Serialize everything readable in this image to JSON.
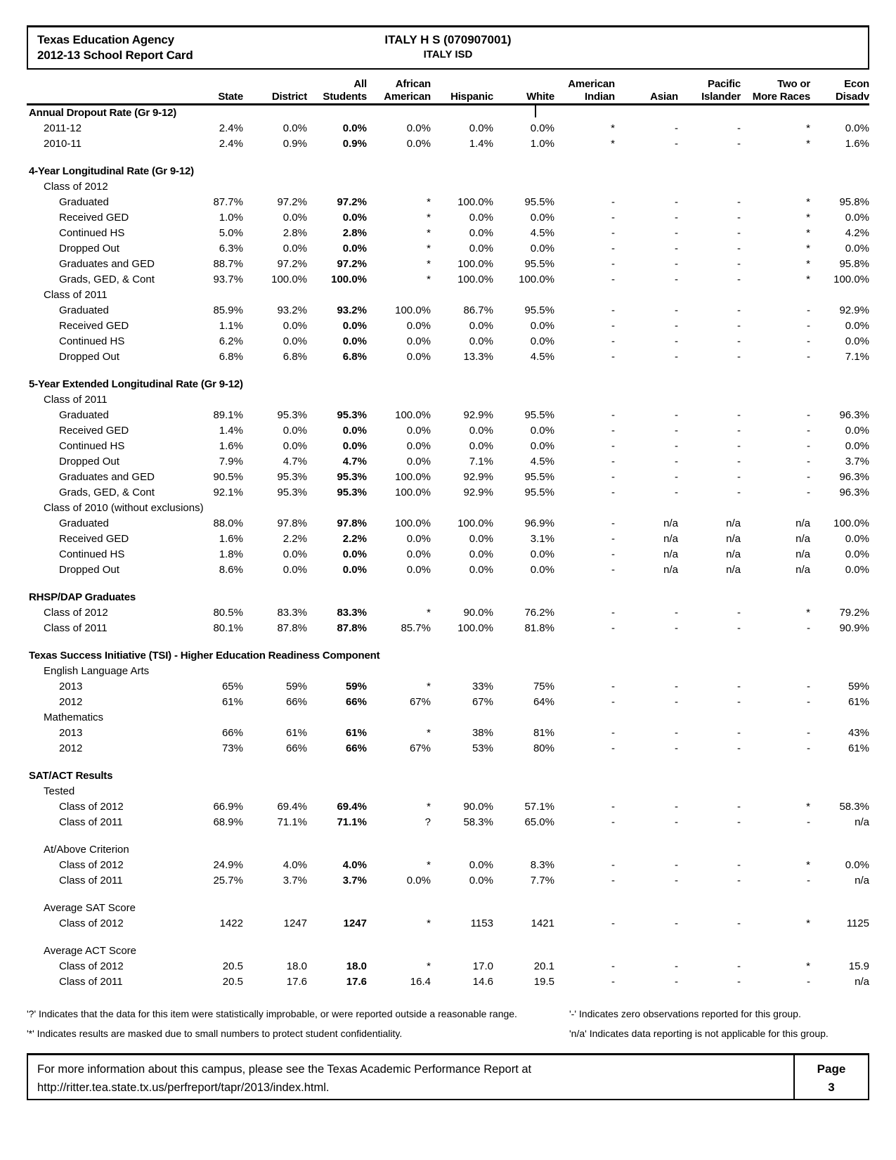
{
  "header": {
    "agency": "Texas Education Agency",
    "report": "2012-13 School Report Card",
    "campus": "ITALY H S (070907001)",
    "district": "ITALY ISD"
  },
  "table": {
    "columns": [
      {
        "l1": "",
        "l2": "State"
      },
      {
        "l1": "",
        "l2": "District"
      },
      {
        "l1": "All",
        "l2": "Students"
      },
      {
        "l1": "African",
        "l2": "American"
      },
      {
        "l1": "",
        "l2": "Hispanic"
      },
      {
        "l1": "",
        "l2": "White"
      },
      {
        "l1": "American",
        "l2": "Indian"
      },
      {
        "l1": "",
        "l2": "Asian"
      },
      {
        "l1": "Pacific",
        "l2": "Islander"
      },
      {
        "l1": "Two or",
        "l2": "More Races"
      },
      {
        "l1": "Econ",
        "l2": "Disadv"
      }
    ],
    "rows": [
      {
        "t": "section",
        "label": "Annual Dropout Rate (Gr 9-12)"
      },
      {
        "t": "data",
        "indent": 1,
        "label": "2011-12",
        "v": [
          "2.4%",
          "0.0%",
          "0.0%",
          "0.0%",
          "0.0%",
          "0.0%",
          "*",
          "-",
          "-",
          "*",
          "0.0%"
        ]
      },
      {
        "t": "data",
        "indent": 1,
        "label": "2010-11",
        "v": [
          "2.4%",
          "0.9%",
          "0.9%",
          "0.0%",
          "1.4%",
          "1.0%",
          "*",
          "-",
          "-",
          "*",
          "1.6%"
        ]
      },
      {
        "t": "gap"
      },
      {
        "t": "section",
        "label": "4-Year Longitudinal Rate (Gr 9-12)"
      },
      {
        "t": "sub",
        "label": "Class of 2012"
      },
      {
        "t": "data",
        "indent": 2,
        "label": "Graduated",
        "v": [
          "87.7%",
          "97.2%",
          "97.2%",
          "*",
          "100.0%",
          "95.5%",
          "-",
          "-",
          "-",
          "*",
          "95.8%"
        ]
      },
      {
        "t": "data",
        "indent": 2,
        "label": "Received GED",
        "v": [
          "1.0%",
          "0.0%",
          "0.0%",
          "*",
          "0.0%",
          "0.0%",
          "-",
          "-",
          "-",
          "*",
          "0.0%"
        ]
      },
      {
        "t": "data",
        "indent": 2,
        "label": "Continued HS",
        "v": [
          "5.0%",
          "2.8%",
          "2.8%",
          "*",
          "0.0%",
          "4.5%",
          "-",
          "-",
          "-",
          "*",
          "4.2%"
        ]
      },
      {
        "t": "data",
        "indent": 2,
        "label": "Dropped Out",
        "v": [
          "6.3%",
          "0.0%",
          "0.0%",
          "*",
          "0.0%",
          "0.0%",
          "-",
          "-",
          "-",
          "*",
          "0.0%"
        ]
      },
      {
        "t": "data",
        "indent": 2,
        "label": "Graduates and GED",
        "v": [
          "88.7%",
          "97.2%",
          "97.2%",
          "*",
          "100.0%",
          "95.5%",
          "-",
          "-",
          "-",
          "*",
          "95.8%"
        ]
      },
      {
        "t": "data",
        "indent": 2,
        "label": "Grads, GED, & Cont",
        "v": [
          "93.7%",
          "100.0%",
          "100.0%",
          "*",
          "100.0%",
          "100.0%",
          "-",
          "-",
          "-",
          "*",
          "100.0%"
        ]
      },
      {
        "t": "sub",
        "label": "Class of 2011"
      },
      {
        "t": "data",
        "indent": 2,
        "label": "Graduated",
        "v": [
          "85.9%",
          "93.2%",
          "93.2%",
          "100.0%",
          "86.7%",
          "95.5%",
          "-",
          "-",
          "-",
          "-",
          "92.9%"
        ]
      },
      {
        "t": "data",
        "indent": 2,
        "label": "Received GED",
        "v": [
          "1.1%",
          "0.0%",
          "0.0%",
          "0.0%",
          "0.0%",
          "0.0%",
          "-",
          "-",
          "-",
          "-",
          "0.0%"
        ]
      },
      {
        "t": "data",
        "indent": 2,
        "label": "Continued HS",
        "v": [
          "6.2%",
          "0.0%",
          "0.0%",
          "0.0%",
          "0.0%",
          "0.0%",
          "-",
          "-",
          "-",
          "-",
          "0.0%"
        ]
      },
      {
        "t": "data",
        "indent": 2,
        "label": "Dropped Out",
        "v": [
          "6.8%",
          "6.8%",
          "6.8%",
          "0.0%",
          "13.3%",
          "4.5%",
          "-",
          "-",
          "-",
          "-",
          "7.1%"
        ]
      },
      {
        "t": "gap"
      },
      {
        "t": "section",
        "label": "5-Year Extended Longitudinal Rate (Gr 9-12)"
      },
      {
        "t": "sub",
        "label": "Class of 2011"
      },
      {
        "t": "data",
        "indent": 2,
        "label": "Graduated",
        "v": [
          "89.1%",
          "95.3%",
          "95.3%",
          "100.0%",
          "92.9%",
          "95.5%",
          "-",
          "-",
          "-",
          "-",
          "96.3%"
        ]
      },
      {
        "t": "data",
        "indent": 2,
        "label": "Received GED",
        "v": [
          "1.4%",
          "0.0%",
          "0.0%",
          "0.0%",
          "0.0%",
          "0.0%",
          "-",
          "-",
          "-",
          "-",
          "0.0%"
        ]
      },
      {
        "t": "data",
        "indent": 2,
        "label": "Continued HS",
        "v": [
          "1.6%",
          "0.0%",
          "0.0%",
          "0.0%",
          "0.0%",
          "0.0%",
          "-",
          "-",
          "-",
          "-",
          "0.0%"
        ]
      },
      {
        "t": "data",
        "indent": 2,
        "label": "Dropped Out",
        "v": [
          "7.9%",
          "4.7%",
          "4.7%",
          "0.0%",
          "7.1%",
          "4.5%",
          "-",
          "-",
          "-",
          "-",
          "3.7%"
        ]
      },
      {
        "t": "data",
        "indent": 2,
        "label": "Graduates and GED",
        "v": [
          "90.5%",
          "95.3%",
          "95.3%",
          "100.0%",
          "92.9%",
          "95.5%",
          "-",
          "-",
          "-",
          "-",
          "96.3%"
        ]
      },
      {
        "t": "data",
        "indent": 2,
        "label": "Grads, GED, & Cont",
        "v": [
          "92.1%",
          "95.3%",
          "95.3%",
          "100.0%",
          "92.9%",
          "95.5%",
          "-",
          "-",
          "-",
          "-",
          "96.3%"
        ]
      },
      {
        "t": "sub",
        "label": "Class of 2010 (without exclusions)"
      },
      {
        "t": "data",
        "indent": 2,
        "label": "Graduated",
        "v": [
          "88.0%",
          "97.8%",
          "97.8%",
          "100.0%",
          "100.0%",
          "96.9%",
          "-",
          "n/a",
          "n/a",
          "n/a",
          "100.0%"
        ]
      },
      {
        "t": "data",
        "indent": 2,
        "label": "Received GED",
        "v": [
          "1.6%",
          "2.2%",
          "2.2%",
          "0.0%",
          "0.0%",
          "3.1%",
          "-",
          "n/a",
          "n/a",
          "n/a",
          "0.0%"
        ]
      },
      {
        "t": "data",
        "indent": 2,
        "label": "Continued HS",
        "v": [
          "1.8%",
          "0.0%",
          "0.0%",
          "0.0%",
          "0.0%",
          "0.0%",
          "-",
          "n/a",
          "n/a",
          "n/a",
          "0.0%"
        ]
      },
      {
        "t": "data",
        "indent": 2,
        "label": "Dropped Out",
        "v": [
          "8.6%",
          "0.0%",
          "0.0%",
          "0.0%",
          "0.0%",
          "0.0%",
          "-",
          "n/a",
          "n/a",
          "n/a",
          "0.0%"
        ]
      },
      {
        "t": "gap"
      },
      {
        "t": "section",
        "label": "RHSP/DAP Graduates"
      },
      {
        "t": "data",
        "indent": 1,
        "label": "Class of 2012",
        "v": [
          "80.5%",
          "83.3%",
          "83.3%",
          "*",
          "90.0%",
          "76.2%",
          "-",
          "-",
          "-",
          "*",
          "79.2%"
        ]
      },
      {
        "t": "data",
        "indent": 1,
        "label": "Class of 2011",
        "v": [
          "80.1%",
          "87.8%",
          "87.8%",
          "85.7%",
          "100.0%",
          "81.8%",
          "-",
          "-",
          "-",
          "-",
          "90.9%"
        ]
      },
      {
        "t": "gap"
      },
      {
        "t": "section",
        "label": "Texas Success Initiative (TSI) - Higher Education Readiness Component"
      },
      {
        "t": "sub",
        "label": "English Language Arts"
      },
      {
        "t": "data",
        "indent": 2,
        "label": "2013",
        "v": [
          "65%",
          "59%",
          "59%",
          "*",
          "33%",
          "75%",
          "-",
          "-",
          "-",
          "-",
          "59%"
        ]
      },
      {
        "t": "data",
        "indent": 2,
        "label": "2012",
        "v": [
          "61%",
          "66%",
          "66%",
          "67%",
          "67%",
          "64%",
          "-",
          "-",
          "-",
          "-",
          "61%"
        ]
      },
      {
        "t": "sub",
        "label": "Mathematics"
      },
      {
        "t": "data",
        "indent": 2,
        "label": "2013",
        "v": [
          "66%",
          "61%",
          "61%",
          "*",
          "38%",
          "81%",
          "-",
          "-",
          "-",
          "-",
          "43%"
        ]
      },
      {
        "t": "data",
        "indent": 2,
        "label": "2012",
        "v": [
          "73%",
          "66%",
          "66%",
          "67%",
          "53%",
          "80%",
          "-",
          "-",
          "-",
          "-",
          "61%"
        ]
      },
      {
        "t": "gap"
      },
      {
        "t": "section",
        "label": "SAT/ACT Results"
      },
      {
        "t": "sub",
        "label": "Tested"
      },
      {
        "t": "data",
        "indent": 2,
        "label": "Class of 2012",
        "v": [
          "66.9%",
          "69.4%",
          "69.4%",
          "*",
          "90.0%",
          "57.1%",
          "-",
          "-",
          "-",
          "*",
          "58.3%"
        ]
      },
      {
        "t": "data",
        "indent": 2,
        "label": "Class of 2011",
        "v": [
          "68.9%",
          "71.1%",
          "71.1%",
          "?",
          "58.3%",
          "65.0%",
          "-",
          "-",
          "-",
          "-",
          "n/a"
        ]
      },
      {
        "t": "gap"
      },
      {
        "t": "sub",
        "label": "At/Above Criterion"
      },
      {
        "t": "data",
        "indent": 2,
        "label": "Class of 2012",
        "v": [
          "24.9%",
          "4.0%",
          "4.0%",
          "*",
          "0.0%",
          "8.3%",
          "-",
          "-",
          "-",
          "*",
          "0.0%"
        ]
      },
      {
        "t": "data",
        "indent": 2,
        "label": "Class of 2011",
        "v": [
          "25.7%",
          "3.7%",
          "3.7%",
          "0.0%",
          "0.0%",
          "7.7%",
          "-",
          "-",
          "-",
          "-",
          "n/a"
        ]
      },
      {
        "t": "gap"
      },
      {
        "t": "sub",
        "label": "Average SAT Score"
      },
      {
        "t": "data",
        "indent": 2,
        "label": "Class of 2012",
        "v": [
          "1422",
          "1247",
          "1247",
          "*",
          "1153",
          "1421",
          "-",
          "-",
          "-",
          "*",
          "1125"
        ]
      },
      {
        "t": "gap"
      },
      {
        "t": "sub",
        "label": "Average ACT Score"
      },
      {
        "t": "data",
        "indent": 2,
        "label": "Class of 2012",
        "v": [
          "20.5",
          "18.0",
          "18.0",
          "*",
          "17.0",
          "20.1",
          "-",
          "-",
          "-",
          "*",
          "15.9"
        ]
      },
      {
        "t": "data",
        "indent": 2,
        "label": "Class of 2011",
        "v": [
          "20.5",
          "17.6",
          "17.6",
          "16.4",
          "14.6",
          "19.5",
          "-",
          "-",
          "-",
          "-",
          "n/a"
        ]
      }
    ]
  },
  "legend": {
    "q": "'?' Indicates that the data for this item were statistically improbable, or were reported outside a reasonable range.",
    "star": "'*' Indicates results are masked due to small numbers to protect student confidentiality.",
    "dash": "'-' Indicates zero observations reported for this group.",
    "na": "'n/a' Indicates data reporting is not applicable for this group."
  },
  "footer": {
    "info": "For more information about this campus, please see the Texas Academic Performance Report at",
    "url": "http://ritter.tea.state.tx.us/perfreport/tapr/2013/index.html.",
    "page_label": "Page",
    "page_number": "3"
  }
}
